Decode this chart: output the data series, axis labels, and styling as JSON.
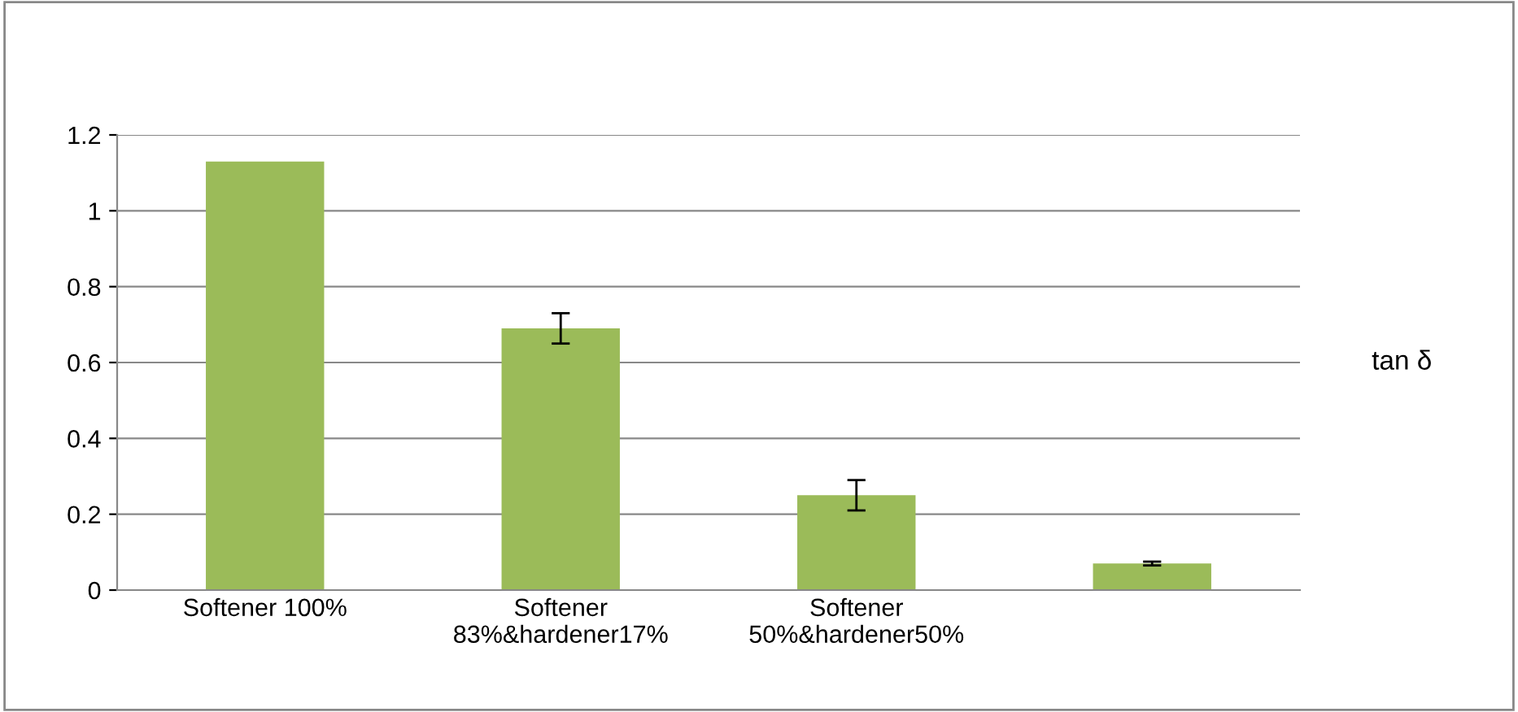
{
  "chart_data": {
    "type": "bar",
    "categories": [
      "Softener 100%",
      "Softener\n83%&hardener17%",
      "Softener\n50%&hardener50%",
      null
    ],
    "series": [
      {
        "name": "tan δ",
        "color": "#9bbb59",
        "values": [
          1.13,
          0.69,
          0.25,
          0.07
        ],
        "errors": [
          null,
          0.04,
          0.04,
          0.005
        ]
      }
    ],
    "ylim": [
      0,
      1.2
    ],
    "yticks": [
      0,
      0.2,
      0.4,
      0.6,
      0.8,
      1,
      1.2
    ],
    "grid": "y",
    "legend": "right"
  }
}
